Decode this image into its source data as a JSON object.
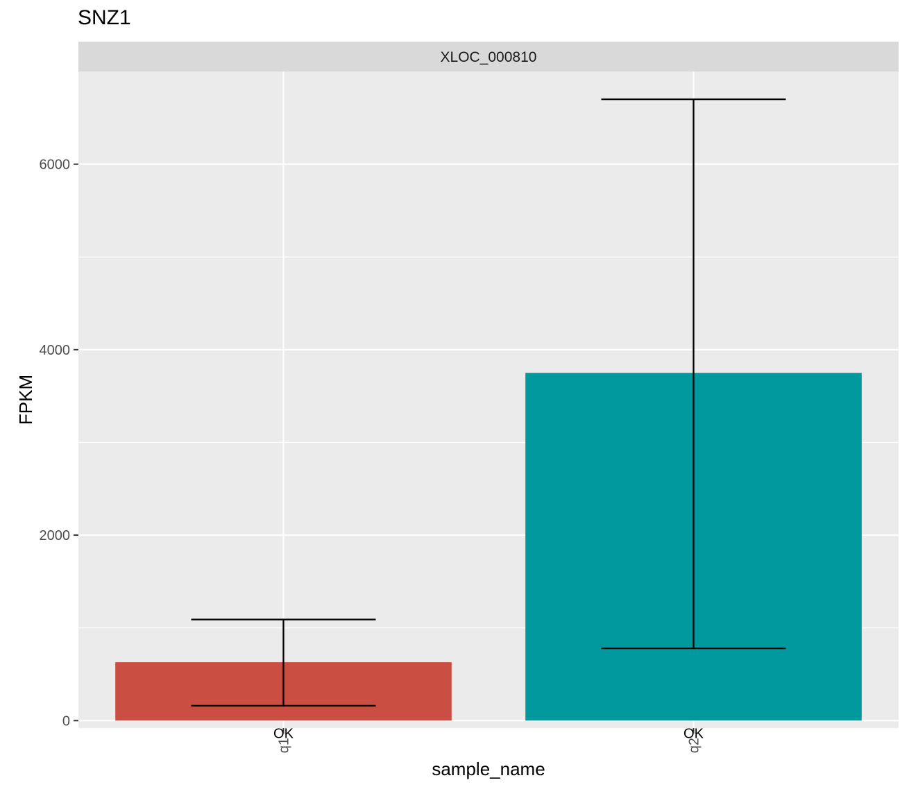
{
  "chart_data": {
    "type": "bar",
    "title": "SNZ1",
    "facet_label": "XLOC_000810",
    "categories": [
      "q1",
      "q2"
    ],
    "values": [
      630,
      3750
    ],
    "error_low": [
      160,
      780
    ],
    "error_high": [
      1090,
      6700
    ],
    "status_labels": [
      "OK",
      "OK"
    ],
    "bar_colors": [
      "#CB4E42",
      "#00999D"
    ],
    "xlabel": "sample_name",
    "ylabel": "FPKM",
    "ylim": [
      -80,
      7000
    ],
    "yticks": [
      0,
      2000,
      4000,
      6000
    ],
    "grid": true,
    "panel_background": "#EBEBEB",
    "strip_background": "#D9D9D9"
  }
}
